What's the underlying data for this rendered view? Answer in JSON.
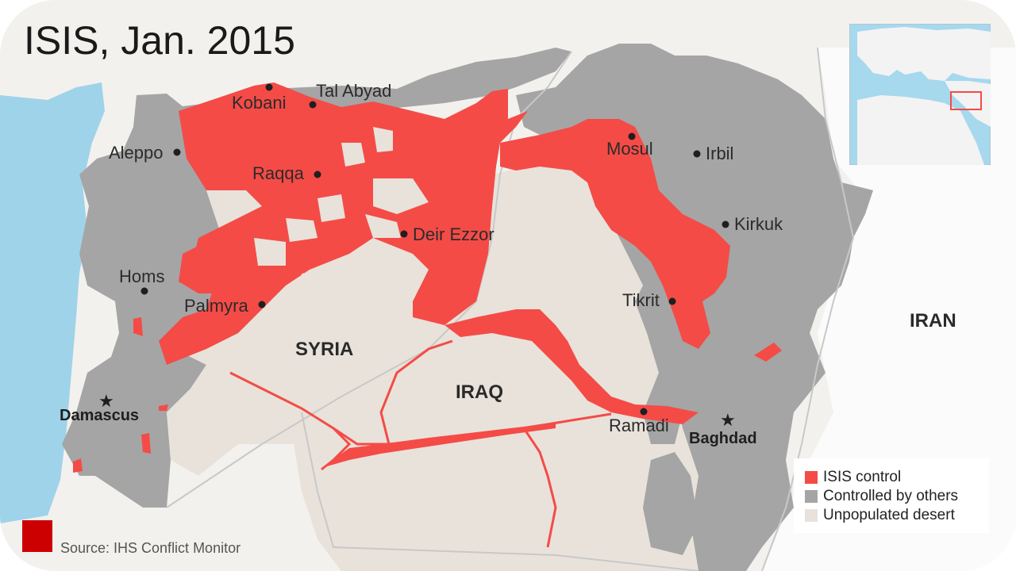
{
  "title": "ISIS, Jan. 2015",
  "source": "Source: IHS Conflict Monitor",
  "colors": {
    "isis": "#f44b47",
    "others": "#a5a5a5",
    "desert": "#e8e2da",
    "water": "#9fd3ea",
    "land": "#f3f1ee",
    "border": "#c8c8c8"
  },
  "countries": {
    "syria": "SYRIA",
    "iraq": "IRAQ",
    "iran": "IRAN"
  },
  "cities": {
    "kobani": "Kobani",
    "tal_abyad": "Tal Abyad",
    "aleppo": "Aleppo",
    "raqqa": "Raqqa",
    "deir_ezzor": "Deir Ezzor",
    "mosul": "Mosul",
    "irbil": "Irbil",
    "kirkuk": "Kirkuk",
    "homs": "Homs",
    "palmyra": "Palmyra",
    "tikrit": "Tikrit",
    "ramadi": "Ramadi"
  },
  "capitals": {
    "damascus": "Damascus",
    "baghdad": "Baghdad"
  },
  "legend": {
    "isis": "ISIS control",
    "others": "Controlled by others",
    "desert": "Unpopulated desert"
  },
  "inset": {
    "highlight_icon": "locator-rectangle"
  }
}
